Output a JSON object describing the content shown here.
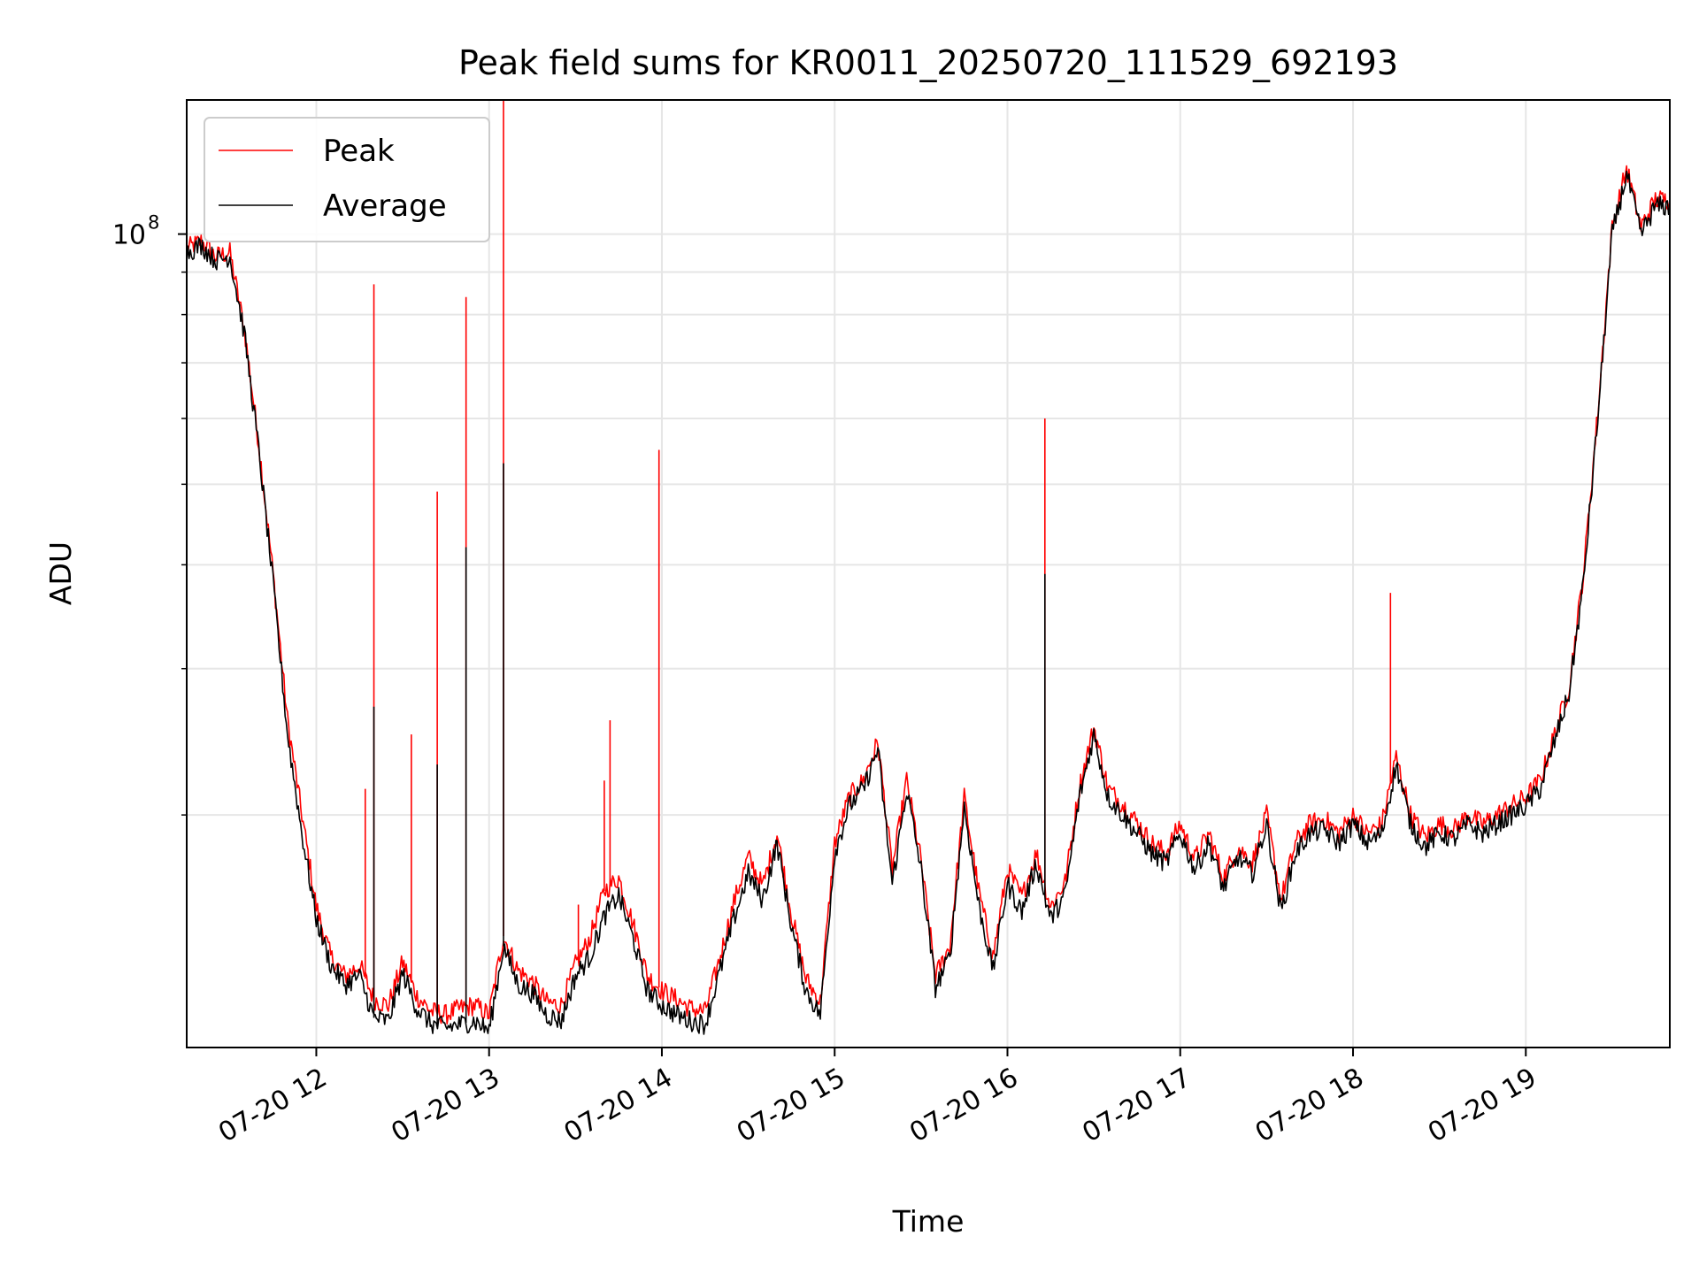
{
  "chart_data": {
    "type": "line",
    "title": "Peak field sums for KR0011_20250720_111529_692193",
    "xlabel": "Time",
    "ylabel": "ADU",
    "x_axis_type": "datetime",
    "xlim": [
      "2025-07-20 11:15",
      "2025-07-20 19:50"
    ],
    "y_scale": "log",
    "ylim": [
      10500000,
      145000000
    ],
    "grid": true,
    "legend_position": "top-left",
    "x_ticks": [
      {
        "value": "2025-07-20 12:00",
        "label": "07-20 12"
      },
      {
        "value": "2025-07-20 13:00",
        "label": "07-20 13"
      },
      {
        "value": "2025-07-20 14:00",
        "label": "07-20 14"
      },
      {
        "value": "2025-07-20 15:00",
        "label": "07-20 15"
      },
      {
        "value": "2025-07-20 16:00",
        "label": "07-20 16"
      },
      {
        "value": "2025-07-20 17:00",
        "label": "07-20 17"
      },
      {
        "value": "2025-07-20 18:00",
        "label": "07-20 18"
      },
      {
        "value": "2025-07-20 19:00",
        "label": "07-20 19"
      }
    ],
    "y_major_ticks": [
      {
        "value": 100000000,
        "label_base": "10",
        "label_exp": "8"
      }
    ],
    "y_minor_ticks": [
      20000000,
      30000000,
      40000000,
      50000000,
      60000000,
      70000000,
      80000000,
      90000000
    ],
    "series": [
      {
        "name": "Average",
        "color": "#000000",
        "x": [
          "2025-07-20 11:15",
          "2025-07-20 11:20",
          "2025-07-20 11:25",
          "2025-07-20 11:30",
          "2025-07-20 11:35",
          "2025-07-20 11:40",
          "2025-07-20 11:45",
          "2025-07-20 11:50",
          "2025-07-20 11:55",
          "2025-07-20 12:00",
          "2025-07-20 12:05",
          "2025-07-20 12:10",
          "2025-07-20 12:15",
          "2025-07-20 12:20",
          "2025-07-20 12:25",
          "2025-07-20 12:30",
          "2025-07-20 12:35",
          "2025-07-20 12:40",
          "2025-07-20 12:45",
          "2025-07-20 12:50",
          "2025-07-20 12:55",
          "2025-07-20 13:00",
          "2025-07-20 13:05",
          "2025-07-20 13:10",
          "2025-07-20 13:15",
          "2025-07-20 13:20",
          "2025-07-20 13:25",
          "2025-07-20 13:30",
          "2025-07-20 13:35",
          "2025-07-20 13:40",
          "2025-07-20 13:45",
          "2025-07-20 13:50",
          "2025-07-20 13:55",
          "2025-07-20 14:00",
          "2025-07-20 14:05",
          "2025-07-20 14:10",
          "2025-07-20 14:15",
          "2025-07-20 14:20",
          "2025-07-20 14:25",
          "2025-07-20 14:30",
          "2025-07-20 14:35",
          "2025-07-20 14:40",
          "2025-07-20 14:45",
          "2025-07-20 14:50",
          "2025-07-20 14:55",
          "2025-07-20 15:00",
          "2025-07-20 15:05",
          "2025-07-20 15:10",
          "2025-07-20 15:15",
          "2025-07-20 15:20",
          "2025-07-20 15:25",
          "2025-07-20 15:30",
          "2025-07-20 15:35",
          "2025-07-20 15:40",
          "2025-07-20 15:45",
          "2025-07-20 15:50",
          "2025-07-20 15:55",
          "2025-07-20 16:00",
          "2025-07-20 16:05",
          "2025-07-20 16:10",
          "2025-07-20 16:15",
          "2025-07-20 16:20",
          "2025-07-20 16:25",
          "2025-07-20 16:30",
          "2025-07-20 16:35",
          "2025-07-20 16:40",
          "2025-07-20 16:45",
          "2025-07-20 16:50",
          "2025-07-20 16:55",
          "2025-07-20 17:00",
          "2025-07-20 17:05",
          "2025-07-20 17:10",
          "2025-07-20 17:15",
          "2025-07-20 17:20",
          "2025-07-20 17:25",
          "2025-07-20 17:30",
          "2025-07-20 17:35",
          "2025-07-20 17:40",
          "2025-07-20 17:45",
          "2025-07-20 17:50",
          "2025-07-20 17:55",
          "2025-07-20 18:00",
          "2025-07-20 18:05",
          "2025-07-20 18:10",
          "2025-07-20 18:15",
          "2025-07-20 18:20",
          "2025-07-20 18:25",
          "2025-07-20 18:30",
          "2025-07-20 18:35",
          "2025-07-20 18:40",
          "2025-07-20 18:45",
          "2025-07-20 18:50",
          "2025-07-20 18:55",
          "2025-07-20 19:00",
          "2025-07-20 19:05",
          "2025-07-20 19:10",
          "2025-07-20 19:15",
          "2025-07-20 19:20",
          "2025-07-20 19:25",
          "2025-07-20 19:30",
          "2025-07-20 19:35",
          "2025-07-20 19:40",
          "2025-07-20 19:45",
          "2025-07-20 19:50"
        ],
        "values": [
          95000000,
          97000000,
          93000000,
          94000000,
          76000000,
          55000000,
          38000000,
          25000000,
          19000000,
          15000000,
          13200000,
          12500000,
          12800000,
          11400000,
          11300000,
          12900000,
          11700000,
          11200000,
          11100000,
          11200000,
          11300000,
          11000000,
          13900000,
          12500000,
          12200000,
          11500000,
          11300000,
          12800000,
          13500000,
          15100000,
          16000000,
          14200000,
          12300000,
          11800000,
          11500000,
          11300000,
          11200000,
          12900000,
          15000000,
          17000000,
          15800000,
          18500000,
          14700000,
          12300000,
          11500000,
          18000000,
          20500000,
          21500000,
          24000000,
          16500000,
          21500000,
          17200000,
          12400000,
          13500000,
          20500000,
          15600000,
          13000000,
          16500000,
          15300000,
          17500000,
          15000000,
          16000000,
          21000000,
          25000000,
          21000000,
          20000000,
          19000000,
          18000000,
          17500000,
          19000000,
          17200000,
          18500000,
          16300000,
          17800000,
          17000000,
          19500000,
          15300000,
          18000000,
          19000000,
          19200000,
          18500000,
          19500000,
          18500000,
          19000000,
          23000000,
          19500000,
          18300000,
          19000000,
          18700000,
          19500000,
          19000000,
          19500000,
          20000000,
          20500000,
          21500000,
          24500000,
          28000000,
          38000000,
          60000000,
          100000000,
          118000000,
          100000000,
          108000000,
          108000000
        ]
      },
      {
        "name": "Peak",
        "color": "#ff0000",
        "x": [
          "2025-07-20 11:15",
          "2025-07-20 11:20",
          "2025-07-20 11:25",
          "2025-07-20 11:30",
          "2025-07-20 11:35",
          "2025-07-20 11:40",
          "2025-07-20 11:45",
          "2025-07-20 11:50",
          "2025-07-20 11:55",
          "2025-07-20 12:00",
          "2025-07-20 12:05",
          "2025-07-20 12:10",
          "2025-07-20 12:15",
          "2025-07-20 12:20",
          "2025-07-20 12:25",
          "2025-07-20 12:30",
          "2025-07-20 12:35",
          "2025-07-20 12:40",
          "2025-07-20 12:45",
          "2025-07-20 12:50",
          "2025-07-20 12:55",
          "2025-07-20 13:00",
          "2025-07-20 13:05",
          "2025-07-20 13:10",
          "2025-07-20 13:15",
          "2025-07-20 13:20",
          "2025-07-20 13:25",
          "2025-07-20 13:30",
          "2025-07-20 13:35",
          "2025-07-20 13:40",
          "2025-07-20 13:45",
          "2025-07-20 13:50",
          "2025-07-20 13:55",
          "2025-07-20 14:00",
          "2025-07-20 14:05",
          "2025-07-20 14:10",
          "2025-07-20 14:15",
          "2025-07-20 14:20",
          "2025-07-20 14:25",
          "2025-07-20 14:30",
          "2025-07-20 14:35",
          "2025-07-20 14:40",
          "2025-07-20 14:45",
          "2025-07-20 14:50",
          "2025-07-20 14:55",
          "2025-07-20 15:00",
          "2025-07-20 15:05",
          "2025-07-20 15:10",
          "2025-07-20 15:15",
          "2025-07-20 15:20",
          "2025-07-20 15:25",
          "2025-07-20 15:30",
          "2025-07-20 15:35",
          "2025-07-20 15:40",
          "2025-07-20 15:45",
          "2025-07-20 15:50",
          "2025-07-20 15:55",
          "2025-07-20 16:00",
          "2025-07-20 16:05",
          "2025-07-20 16:10",
          "2025-07-20 16:15",
          "2025-07-20 16:20",
          "2025-07-20 16:25",
          "2025-07-20 16:30",
          "2025-07-20 16:35",
          "2025-07-20 16:40",
          "2025-07-20 16:45",
          "2025-07-20 16:50",
          "2025-07-20 16:55",
          "2025-07-20 17:00",
          "2025-07-20 17:05",
          "2025-07-20 17:10",
          "2025-07-20 17:15",
          "2025-07-20 17:20",
          "2025-07-20 17:25",
          "2025-07-20 17:30",
          "2025-07-20 17:35",
          "2025-07-20 17:40",
          "2025-07-20 17:45",
          "2025-07-20 17:50",
          "2025-07-20 17:55",
          "2025-07-20 18:00",
          "2025-07-20 18:05",
          "2025-07-20 18:10",
          "2025-07-20 18:15",
          "2025-07-20 18:20",
          "2025-07-20 18:25",
          "2025-07-20 18:30",
          "2025-07-20 18:35",
          "2025-07-20 18:40",
          "2025-07-20 18:45",
          "2025-07-20 18:50",
          "2025-07-20 18:55",
          "2025-07-20 19:00",
          "2025-07-20 19:05",
          "2025-07-20 19:10",
          "2025-07-20 19:15",
          "2025-07-20 19:20",
          "2025-07-20 19:25",
          "2025-07-20 19:30",
          "2025-07-20 19:35",
          "2025-07-20 19:40",
          "2025-07-20 19:45",
          "2025-07-20 19:50"
        ],
        "values": [
          96000000,
          98000000,
          94000000,
          95000000,
          77000000,
          56000000,
          39000000,
          26000000,
          20000000,
          15500000,
          13500000,
          12800000,
          13200000,
          12000000,
          11800000,
          13300000,
          12100000,
          11600000,
          11500000,
          11700000,
          11800000,
          11500000,
          14300000,
          13000000,
          12600000,
          11900000,
          11800000,
          13200000,
          14200000,
          16200000,
          16800000,
          14800000,
          12800000,
          12300000,
          12000000,
          11700000,
          11600000,
          13400000,
          15700000,
          17800000,
          16400000,
          19000000,
          15200000,
          12700000,
          11900000,
          18500000,
          21000000,
          22000000,
          24500000,
          17200000,
          22000000,
          17600000,
          12800000,
          13900000,
          21000000,
          16200000,
          13500000,
          17200000,
          15900000,
          18000000,
          15500000,
          16600000,
          21600000,
          25500000,
          21500000,
          20600000,
          19600000,
          18500000,
          18000000,
          19500000,
          17700000,
          19000000,
          16800000,
          18300000,
          17500000,
          20000000,
          15800000,
          18500000,
          19500000,
          19800000,
          19000000,
          20000000,
          19000000,
          19500000,
          23500000,
          20000000,
          18800000,
          19500000,
          19200000,
          20000000,
          19500000,
          20000000,
          20500000,
          21000000,
          22000000,
          25000000,
          28500000,
          39000000,
          61000000,
          102000000,
          120000000,
          102000000,
          110000000,
          110000000
        ],
        "spikes": [
          {
            "x": "2025-07-20 12:17",
            "value": 21500000
          },
          {
            "x": "2025-07-20 12:20",
            "value": 87000000
          },
          {
            "x": "2025-07-20 12:33",
            "value": 25000000
          },
          {
            "x": "2025-07-20 12:42",
            "value": 49000000
          },
          {
            "x": "2025-07-20 12:52",
            "value": 84000000
          },
          {
            "x": "2025-07-20 13:05",
            "value": 145000000
          },
          {
            "x": "2025-07-20 13:31",
            "value": 15600000
          },
          {
            "x": "2025-07-20 13:40",
            "value": 22000000
          },
          {
            "x": "2025-07-20 13:42",
            "value": 26000000
          },
          {
            "x": "2025-07-20 13:59",
            "value": 55000000
          },
          {
            "x": "2025-07-20 14:23",
            "value": 15000000
          },
          {
            "x": "2025-07-20 16:13",
            "value": 60000000
          },
          {
            "x": "2025-07-20 18:13",
            "value": 37000000
          }
        ],
        "average_spikes": [
          {
            "x": "2025-07-20 12:20",
            "value": 27000000
          },
          {
            "x": "2025-07-20 12:42",
            "value": 23000000
          },
          {
            "x": "2025-07-20 12:52",
            "value": 42000000
          },
          {
            "x": "2025-07-20 13:05",
            "value": 53000000
          },
          {
            "x": "2025-07-20 16:13",
            "value": 39000000
          }
        ]
      }
    ],
    "legend": [
      {
        "label": "Peak",
        "color": "#ff0000"
      },
      {
        "label": "Average",
        "color": "#000000"
      }
    ]
  }
}
